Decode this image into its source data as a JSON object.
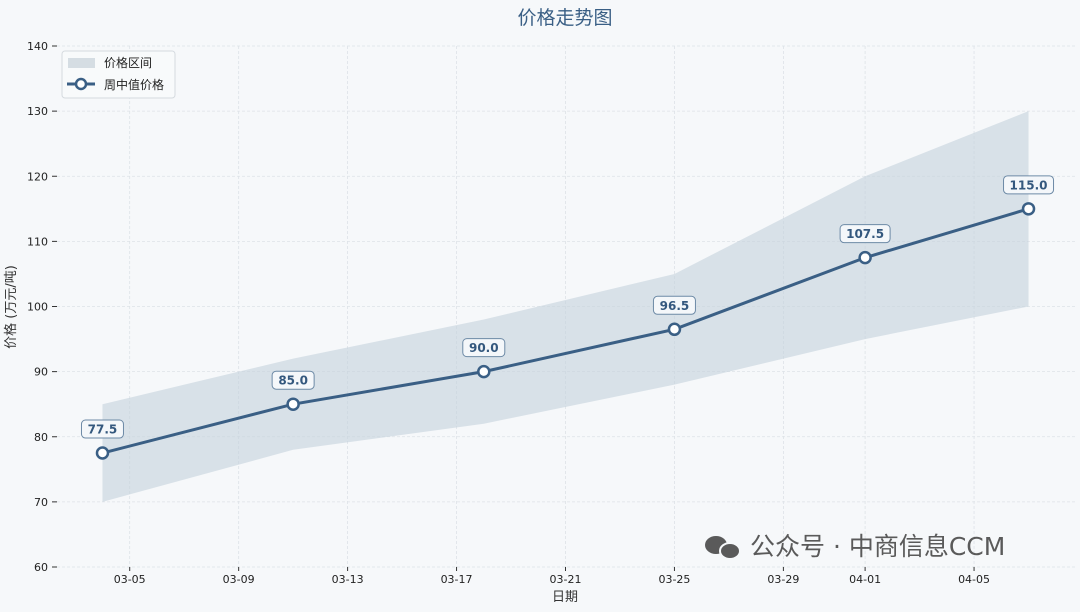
{
  "chart_data": {
    "type": "line",
    "title": "价格走势图",
    "xlabel": "日期",
    "ylabel": "价格 (万元/吨)",
    "ylim": [
      60,
      140
    ],
    "yticks": [
      60,
      70,
      80,
      90,
      100,
      110,
      120,
      130,
      140
    ],
    "xlim": [
      "03-02",
      "04-09"
    ],
    "xticks": [
      "03-05",
      "03-09",
      "03-13",
      "03-17",
      "03-21",
      "03-25",
      "03-29",
      "04-01",
      "04-05"
    ],
    "grid": true,
    "legend_position": "top-left",
    "x": [
      "03-04",
      "03-11",
      "03-18",
      "03-25",
      "04-01",
      "04-07"
    ],
    "series": [
      {
        "name": "周中值价格",
        "type": "line",
        "values": [
          77.5,
          85.0,
          90.0,
          96.5,
          107.5,
          115.0
        ],
        "labels": [
          "77.5",
          "85.0",
          "90.0",
          "96.5",
          "107.5",
          "115.0"
        ],
        "color": "#3a5f85"
      },
      {
        "name": "价格区间",
        "type": "band",
        "lower": [
          70,
          78,
          82,
          88,
          95,
          100
        ],
        "upper": [
          85,
          92,
          98,
          105,
          120,
          130
        ],
        "color": "#c5d2dc"
      }
    ]
  },
  "watermark": {
    "text": "公众号 · 中商信息CCM",
    "icon": "wechat-icon"
  }
}
